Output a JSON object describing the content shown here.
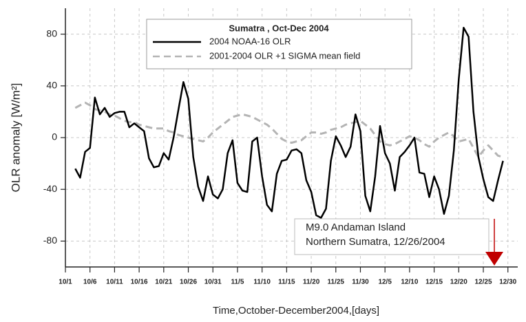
{
  "chart_data": {
    "type": "line",
    "y_label": "OLR  anomaly [W/m²]",
    "x_label": "Time,October-December2004,[days]",
    "legend_title": "Sumatra , Oct-Dec 2004",
    "annotation": [
      "M9.0  Andaman Island",
      "Northern Sumatra, 12/26/2004"
    ],
    "grid": true,
    "xlim": [
      1,
      93
    ],
    "ylim": [
      -100,
      100
    ],
    "yticks": [
      -80,
      -40,
      0,
      40,
      80
    ],
    "xticks": [
      {
        "value": 1,
        "label": "10/1"
      },
      {
        "value": 6,
        "label": "10/6"
      },
      {
        "value": 11,
        "label": "10/11"
      },
      {
        "value": 16,
        "label": "10/16"
      },
      {
        "value": 21,
        "label": "10/21"
      },
      {
        "value": 26,
        "label": "10/26"
      },
      {
        "value": 31,
        "label": "10/31"
      },
      {
        "value": 36,
        "label": "11/5"
      },
      {
        "value": 41,
        "label": "11/10"
      },
      {
        "value": 46,
        "label": "11/15"
      },
      {
        "value": 51,
        "label": "11/20"
      },
      {
        "value": 56,
        "label": "11/25"
      },
      {
        "value": 61,
        "label": "11/30"
      },
      {
        "value": 66,
        "label": "12/5"
      },
      {
        "value": 71,
        "label": "12/10"
      },
      {
        "value": 76,
        "label": "12/15"
      },
      {
        "value": 81,
        "label": "12/20"
      },
      {
        "value": 86,
        "label": "12/25"
      },
      {
        "value": 91,
        "label": "12/30"
      }
    ],
    "x": [
      3,
      4,
      5,
      6,
      7,
      8,
      9,
      10,
      11,
      12,
      13,
      14,
      15,
      16,
      17,
      18,
      19,
      20,
      21,
      22,
      23,
      24,
      25,
      26,
      27,
      28,
      29,
      30,
      31,
      32,
      33,
      34,
      35,
      36,
      37,
      38,
      39,
      40,
      41,
      42,
      43,
      44,
      45,
      46,
      47,
      48,
      49,
      50,
      51,
      52,
      53,
      54,
      55,
      56,
      57,
      58,
      59,
      60,
      61,
      62,
      63,
      64,
      65,
      66,
      67,
      68,
      69,
      70,
      71,
      72,
      73,
      74,
      75,
      76,
      77,
      78,
      79,
      80,
      81,
      82,
      83,
      84,
      85,
      86,
      87,
      88,
      89,
      90
    ],
    "series": [
      {
        "name": "2004 NOAA-16 OLR",
        "color": "#000000",
        "dash": false,
        "values": [
          -24,
          -31,
          -11,
          -8,
          31,
          18,
          23,
          16,
          19,
          20,
          20,
          8,
          11,
          8,
          5,
          -16,
          -23,
          -22,
          -12,
          -17,
          0,
          22,
          43,
          30,
          -15,
          -38,
          -49,
          -30,
          -44,
          -47,
          -40,
          -12,
          -2,
          -35,
          -41,
          -42,
          -3,
          0,
          -30,
          -52,
          -57,
          -28,
          -18,
          -17,
          -10,
          -9,
          -12,
          -33,
          -42,
          -60,
          -62,
          -55,
          -18,
          1,
          -6,
          -15,
          -7,
          18,
          5,
          -45,
          -57,
          -30,
          9,
          -12,
          -20,
          -41,
          -15,
          -11,
          -6,
          0,
          -27,
          -28,
          -46,
          -30,
          -40,
          -59,
          -45,
          -10,
          45,
          85,
          78,
          20,
          -15,
          -32,
          -46,
          -49,
          -33,
          -18
        ]
      },
      {
        "name": "2001-2004 OLR +1 SIGMA mean field",
        "color": "#b4b4b4",
        "dash": true,
        "values": [
          23,
          25,
          27,
          25,
          22,
          21,
          20,
          18,
          17,
          15,
          13,
          12,
          12,
          10,
          9,
          8,
          7,
          7,
          7,
          5,
          4,
          2,
          1,
          0,
          -1,
          -2,
          -3,
          0,
          4,
          7,
          10,
          13,
          16,
          17,
          18,
          17,
          16,
          14,
          12,
          10,
          7,
          3,
          -1,
          -3,
          -4,
          -3,
          -2,
          1,
          4,
          4,
          3,
          4,
          6,
          7,
          8,
          10,
          11,
          12,
          13,
          10,
          7,
          2,
          -3,
          -5,
          -6,
          -5,
          -3,
          -1,
          1,
          0,
          -2,
          -5,
          -7,
          -3,
          0,
          2,
          4,
          1,
          -3,
          -2,
          -1,
          -8,
          -15,
          -10,
          -6,
          -10,
          -14,
          -15
        ]
      }
    ]
  }
}
